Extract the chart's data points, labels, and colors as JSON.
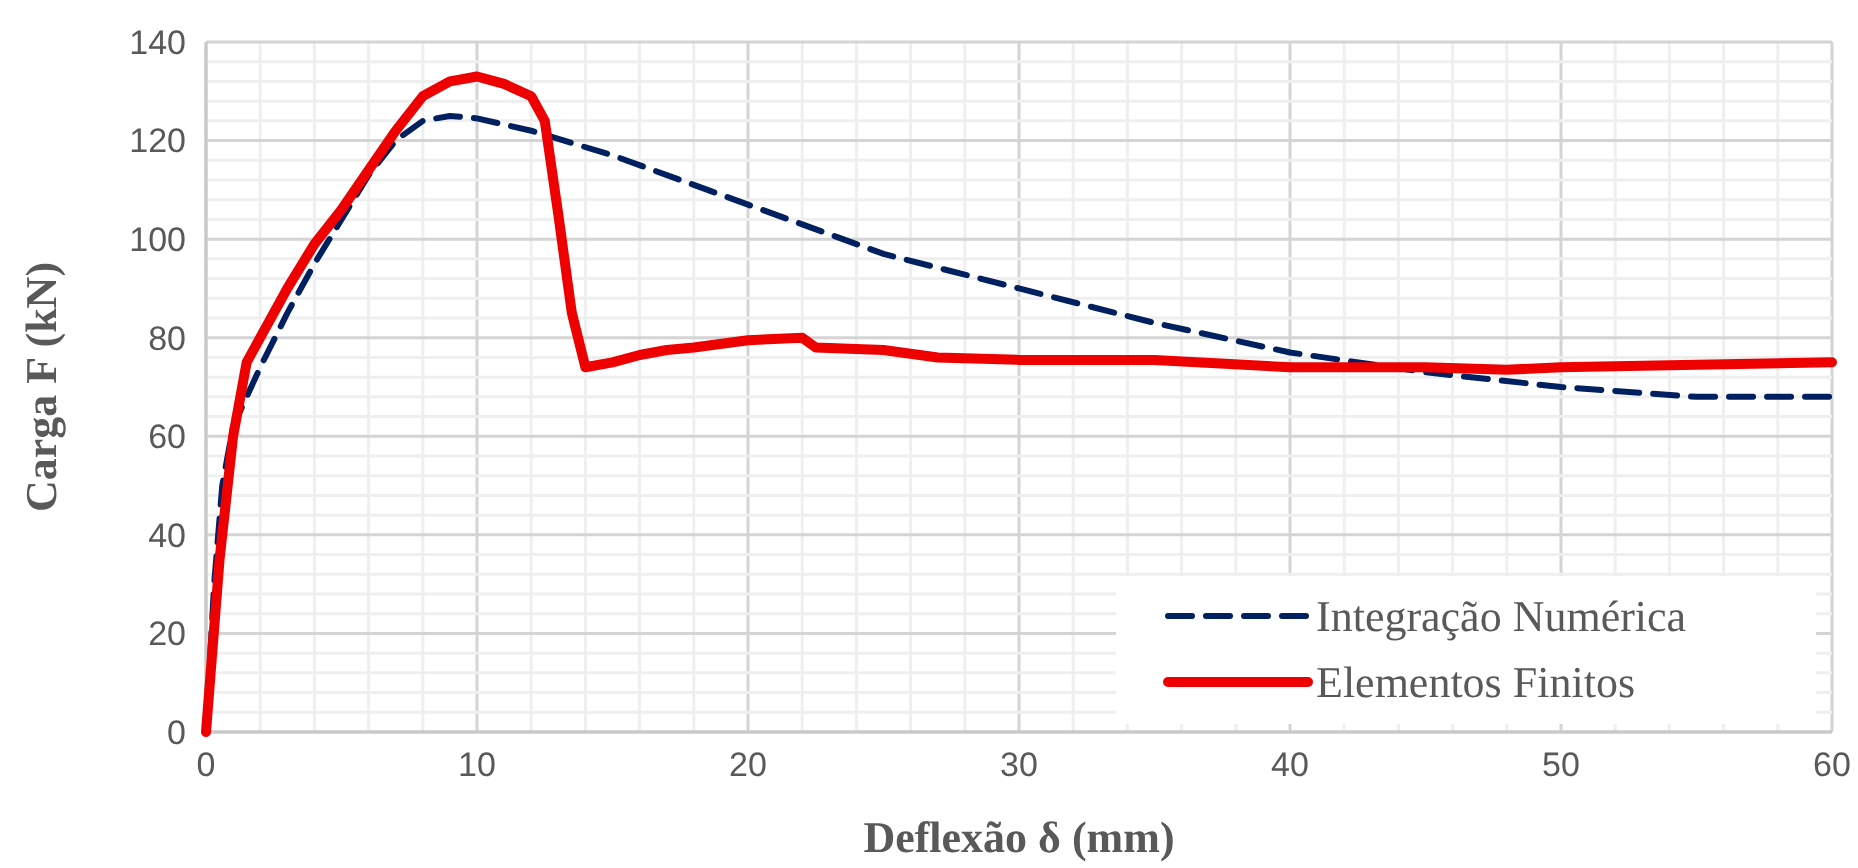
{
  "chart_data": {
    "type": "line",
    "xlabel": "Deflexão δ (mm)",
    "ylabel": "Carga F (kN)",
    "x": [
      0,
      0.3,
      0.6,
      1,
      1.5,
      2,
      3,
      4,
      5,
      6,
      7,
      8,
      9,
      10,
      12,
      15,
      20,
      25,
      30,
      35,
      40,
      45,
      50,
      55,
      60
    ],
    "series": [
      {
        "name": "Integração Numérica",
        "color": "#002060",
        "line_style": "dashed",
        "values": [
          0,
          30,
          50,
          62,
          68,
          74,
          85,
          95,
          104,
          113,
          120,
          124,
          125,
          124.5,
          122,
          117,
          107,
          97,
          90,
          83,
          77,
          73,
          70,
          68,
          68
        ]
      },
      {
        "name": "Elementos Finitos",
        "color": "#ee0000",
        "line_style": "solid",
        "x": [
          0,
          0.5,
          1,
          1.5,
          2,
          3,
          4,
          5,
          6,
          7,
          8,
          9,
          10,
          11,
          12,
          12.5,
          13,
          13.5,
          14,
          15,
          16,
          17,
          18,
          20,
          22,
          22.5,
          25,
          27,
          30,
          35,
          40,
          45,
          48,
          50,
          55,
          60
        ],
        "values": [
          0,
          35,
          60,
          75,
          80,
          90,
          99,
          106,
          114,
          122,
          129,
          132,
          133,
          131.5,
          129,
          124,
          105,
          85,
          74,
          75,
          76.5,
          77.5,
          78,
          79.5,
          80,
          78,
          77.5,
          76,
          75.5,
          75.5,
          74,
          74,
          73.5,
          74,
          74.5,
          75
        ]
      }
    ],
    "xlim": [
      0,
      60
    ],
    "xticks": [
      0,
      {
        "value": 2,
        "label": null
      },
      {
        "value": 4,
        "label": null
      },
      {
        "value": 6,
        "label": null
      },
      {
        "value": 8,
        "label": null
      },
      10,
      {
        "value": 12,
        "label": null
      },
      {
        "value": 14,
        "label": null
      },
      {
        "value": 16,
        "label": null
      },
      {
        "value": 18,
        "label": null
      },
      20,
      {
        "value": 22,
        "label": null
      },
      {
        "value": 24,
        "label": null
      },
      {
        "value": 26,
        "label": null
      },
      {
        "value": 28,
        "label": null
      },
      30,
      {
        "value": 32,
        "label": null
      },
      {
        "value": 34,
        "label": null
      },
      {
        "value": 36,
        "label": null
      },
      {
        "value": 38,
        "label": null
      },
      40,
      {
        "value": 42,
        "label": null
      },
      {
        "value": 44,
        "label": null
      },
      {
        "value": 46,
        "label": null
      },
      {
        "value": 48,
        "label": null
      },
      50,
      {
        "value": 52,
        "label": null
      },
      {
        "value": 54,
        "label": null
      },
      {
        "value": 56,
        "label": null
      },
      {
        "value": 58,
        "label": null
      },
      60
    ],
    "ylim": [
      0,
      140
    ],
    "yticks": [
      0,
      {
        "value": 4,
        "label": null
      },
      {
        "value": 8,
        "label": null
      },
      {
        "value": 12,
        "label": null
      },
      {
        "value": 16,
        "label": null
      },
      20,
      {
        "value": 24,
        "label": null
      },
      {
        "value": 28,
        "label": null
      },
      {
        "value": 32,
        "label": null
      },
      {
        "value": 36,
        "label": null
      },
      40,
      {
        "value": 44,
        "label": null
      },
      {
        "value": 48,
        "label": null
      },
      {
        "value": 52,
        "label": null
      },
      {
        "value": 56,
        "label": null
      },
      60,
      {
        "value": 64,
        "label": null
      },
      {
        "value": 68,
        "label": null
      },
      {
        "value": 72,
        "label": null
      },
      {
        "value": 76,
        "label": null
      },
      80,
      {
        "value": 84,
        "label": null
      },
      {
        "value": 88,
        "label": null
      },
      {
        "value": 92,
        "label": null
      },
      {
        "value": 96,
        "label": null
      },
      100,
      {
        "value": 104,
        "label": null
      },
      {
        "value": 108,
        "label": null
      },
      {
        "value": 112,
        "label": null
      },
      {
        "value": 116,
        "label": null
      },
      120,
      {
        "value": 124,
        "label": null
      },
      {
        "value": 128,
        "label": null
      },
      {
        "value": 132,
        "label": null
      },
      {
        "value": 136,
        "label": null
      },
      140
    ],
    "grid": true,
    "legend": "bottom right",
    "marker": "none"
  }
}
